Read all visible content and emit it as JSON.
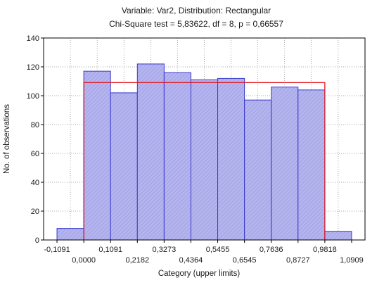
{
  "chart_data": {
    "type": "bar",
    "title": "Variable: Var2, Distribution: Rectangular",
    "subtitle": "Chi-Square test = 5,83622, df = 8, p = 0,66557",
    "xlabel": "Category (upper limits)",
    "ylabel": "No. of observations",
    "ylim": [
      0,
      140
    ],
    "yticks": [
      "0",
      "20",
      "40",
      "60",
      "80",
      "100",
      "120",
      "140"
    ],
    "xticks": [
      "-0,1091",
      "0,0000",
      "0,1091",
      "0,2182",
      "0,3273",
      "0,4364",
      "0,5455",
      "0,6545",
      "0,7636",
      "0,8727",
      "0,9818",
      "1,0909"
    ],
    "values": [
      8,
      117,
      102,
      122,
      116,
      111,
      112,
      97,
      106,
      104,
      6
    ],
    "expected": 109.1,
    "grid": true,
    "colors": {
      "bar_fill": "#b4b4ee",
      "bar_stroke": "#3a3acc",
      "expected_line": "#e8141e"
    }
  }
}
